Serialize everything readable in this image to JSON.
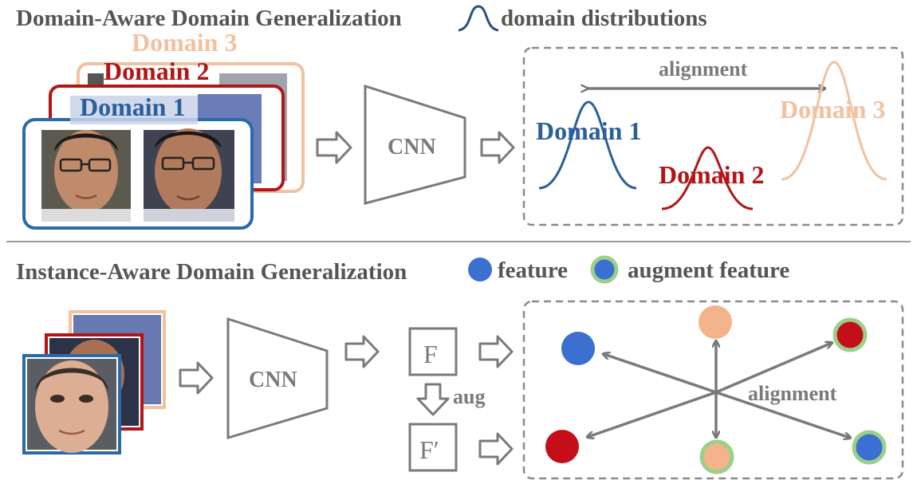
{
  "top": {
    "title": "Domain-Aware Domain Generalization",
    "legend_label": "domain distributions",
    "stack_labels": [
      "Domain 3",
      "Domain 2",
      "Domain 1"
    ],
    "cnn_label": "CNN",
    "alignment_label": "alignment",
    "distribution_labels": {
      "d1": "Domain 1",
      "d2": "Domain 2",
      "d3": "Domain 3"
    }
  },
  "bottom": {
    "title": "Instance-Aware Domain Generalization",
    "legend_feature": "feature",
    "legend_augment": "augment feature",
    "cnn_label": "CNN",
    "f_label": "F",
    "fprime_label": "F′",
    "aug_label": "aug",
    "alignment_label": "alignment"
  },
  "colors": {
    "domain1": "#2a5f9a",
    "domain2": "#b31515",
    "domain3": "#f2c1a0",
    "feature_blue": "#3b6fd0",
    "feature_red": "#c40f1b",
    "feature_orange": "#f4b38a",
    "augment_ring": "#9ad08a",
    "gray": "#7a7a7a"
  }
}
